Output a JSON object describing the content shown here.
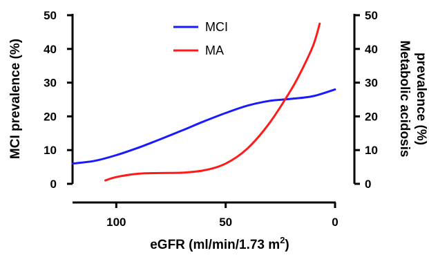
{
  "chart_data": {
    "type": "line",
    "xlabel": "eGFR (ml/min/1.73 m",
    "xlabel_sup": "2",
    "xlabel_close": ")",
    "ylabel_left": "MCI prevalence (%)",
    "ylabel_right_line1": "Metabolic acidosis",
    "ylabel_right_line2": "prevalence (%)",
    "xlim": [
      120,
      0
    ],
    "xticks": [
      100,
      50,
      0
    ],
    "ylim_left": [
      0,
      50
    ],
    "ylim_right": [
      0,
      50
    ],
    "yticks": [
      0,
      10,
      20,
      30,
      40,
      50
    ],
    "legend_placement": "top-center",
    "series": [
      {
        "name": "MCI",
        "axis": "left",
        "color": "#1a1aff",
        "points": [
          [
            120,
            6
          ],
          [
            110,
            6.8
          ],
          [
            100,
            8.5
          ],
          [
            90,
            10.7
          ],
          [
            80,
            13.2
          ],
          [
            70,
            15.8
          ],
          [
            60,
            18.5
          ],
          [
            50,
            21
          ],
          [
            40,
            23.2
          ],
          [
            30,
            24.6
          ],
          [
            20,
            25.2
          ],
          [
            10,
            26
          ],
          [
            0,
            28
          ]
        ]
      },
      {
        "name": "MA",
        "axis": "right",
        "color": "#ff1a1a",
        "points": [
          [
            105,
            1
          ],
          [
            100,
            2
          ],
          [
            90,
            3
          ],
          [
            80,
            3.2
          ],
          [
            70,
            3.3
          ],
          [
            60,
            4
          ],
          [
            50,
            6
          ],
          [
            40,
            10.5
          ],
          [
            30,
            18
          ],
          [
            20,
            28
          ],
          [
            15,
            34
          ],
          [
            10,
            41
          ],
          [
            7,
            47.5
          ]
        ]
      }
    ]
  }
}
